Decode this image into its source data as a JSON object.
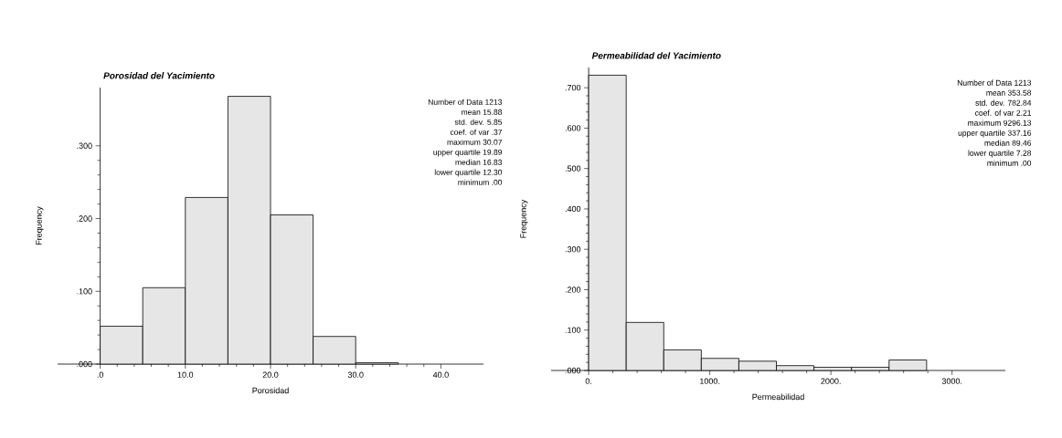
{
  "chart_data": [
    {
      "type": "histogram",
      "title": "Porosidad del Yacimiento",
      "xlabel": "Porosidad",
      "ylabel": "Frequency",
      "color": "#e6e6e6",
      "bins": [
        0,
        5,
        10,
        15,
        20,
        25,
        30,
        35
      ],
      "values": [
        0.052,
        0.105,
        0.229,
        0.368,
        0.205,
        0.038,
        0.002
      ],
      "xlim": [
        -5,
        45
      ],
      "ylim": [
        0,
        0.38
      ],
      "xticks": [
        {
          "value": 0,
          "label": ".0"
        },
        {
          "value": 10,
          "label": "10.0"
        },
        {
          "value": 20,
          "label": "20.0"
        },
        {
          "value": 30,
          "label": "30.0"
        },
        {
          "value": 40,
          "label": "40.0"
        }
      ],
      "yticks": [
        {
          "value": 0,
          "label": ".000"
        },
        {
          "value": 0.1,
          "label": ".100"
        },
        {
          "value": 0.2,
          "label": ".200"
        },
        {
          "value": 0.3,
          "label": ".300"
        }
      ],
      "annotations": [
        "Number of Data 1213",
        "mean 15.88",
        "std. dev. 5.85",
        "coef. of var .37",
        "maximum 30.07",
        "upper quartile 19.89",
        "median 16.83",
        "lower quartile 12.30",
        "minimum .00"
      ]
    },
    {
      "type": "histogram",
      "title": "Permeabilidad del Yacimiento",
      "xlabel": "Permeabilidad",
      "ylabel": "Frequency",
      "color": "#e6e6e6",
      "bins": [
        0,
        310,
        620,
        930,
        1240,
        1550,
        1860,
        2170,
        2480,
        2790
      ],
      "values": [
        0.731,
        0.119,
        0.051,
        0.03,
        0.023,
        0.012,
        0.008,
        0.008,
        0.026
      ],
      "xlim": [
        -310,
        3440
      ],
      "ylim": [
        0,
        0.75
      ],
      "xticks": [
        {
          "value": 0,
          "label": "0."
        },
        {
          "value": 1000,
          "label": "1000."
        },
        {
          "value": 2000,
          "label": "2000."
        },
        {
          "value": 3000,
          "label": "3000."
        }
      ],
      "yticks": [
        {
          "value": 0,
          "label": ".000"
        },
        {
          "value": 0.1,
          "label": ".100"
        },
        {
          "value": 0.2,
          "label": ".200"
        },
        {
          "value": 0.3,
          "label": ".300"
        },
        {
          "value": 0.4,
          "label": ".400"
        },
        {
          "value": 0.5,
          "label": ".500"
        },
        {
          "value": 0.6,
          "label": ".600"
        },
        {
          "value": 0.7,
          "label": ".700"
        }
      ],
      "annotations": [
        "Number of Data 1213",
        "mean 353.58",
        "std. dev. 782.84",
        "coef. of var 2.21",
        "maximum 9296.13",
        "upper quartile 337.16",
        "median 89.46",
        "lower quartile 7.28",
        "minimum .00"
      ]
    }
  ]
}
